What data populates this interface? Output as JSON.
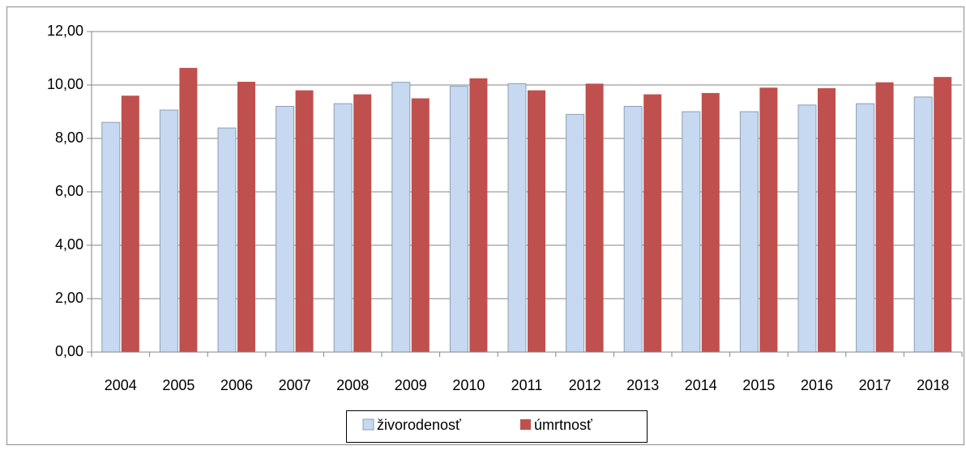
{
  "chart_data": {
    "type": "bar",
    "categories": [
      "2004",
      "2005",
      "2006",
      "2007",
      "2008",
      "2009",
      "2010",
      "2011",
      "2012",
      "2013",
      "2014",
      "2015",
      "2016",
      "2017",
      "2018"
    ],
    "series": [
      {
        "name": "živorodenosť",
        "color": "#c6d9f1",
        "values": [
          8.6,
          9.06,
          8.39,
          9.2,
          9.3,
          10.1,
          9.95,
          10.05,
          8.9,
          9.2,
          9.0,
          9.0,
          9.25,
          9.3,
          9.55
        ]
      },
      {
        "name": "úmrtnosť",
        "color": "#c0504d",
        "values": [
          9.6,
          10.64,
          10.12,
          9.8,
          9.65,
          9.5,
          10.25,
          9.8,
          10.05,
          9.65,
          9.7,
          9.9,
          9.88,
          10.1,
          10.3
        ]
      }
    ],
    "ylim": [
      0,
      12
    ],
    "yticks": [
      {
        "value": 0,
        "label": "0,00"
      },
      {
        "value": 2,
        "label": "2,00"
      },
      {
        "value": 4,
        "label": "4,00"
      },
      {
        "value": 6,
        "label": "6,00"
      },
      {
        "value": 8,
        "label": "8,00"
      },
      {
        "value": 10,
        "label": "10,00"
      },
      {
        "value": 12,
        "label": "12,00"
      }
    ],
    "grid": true,
    "legend": "bottom"
  }
}
